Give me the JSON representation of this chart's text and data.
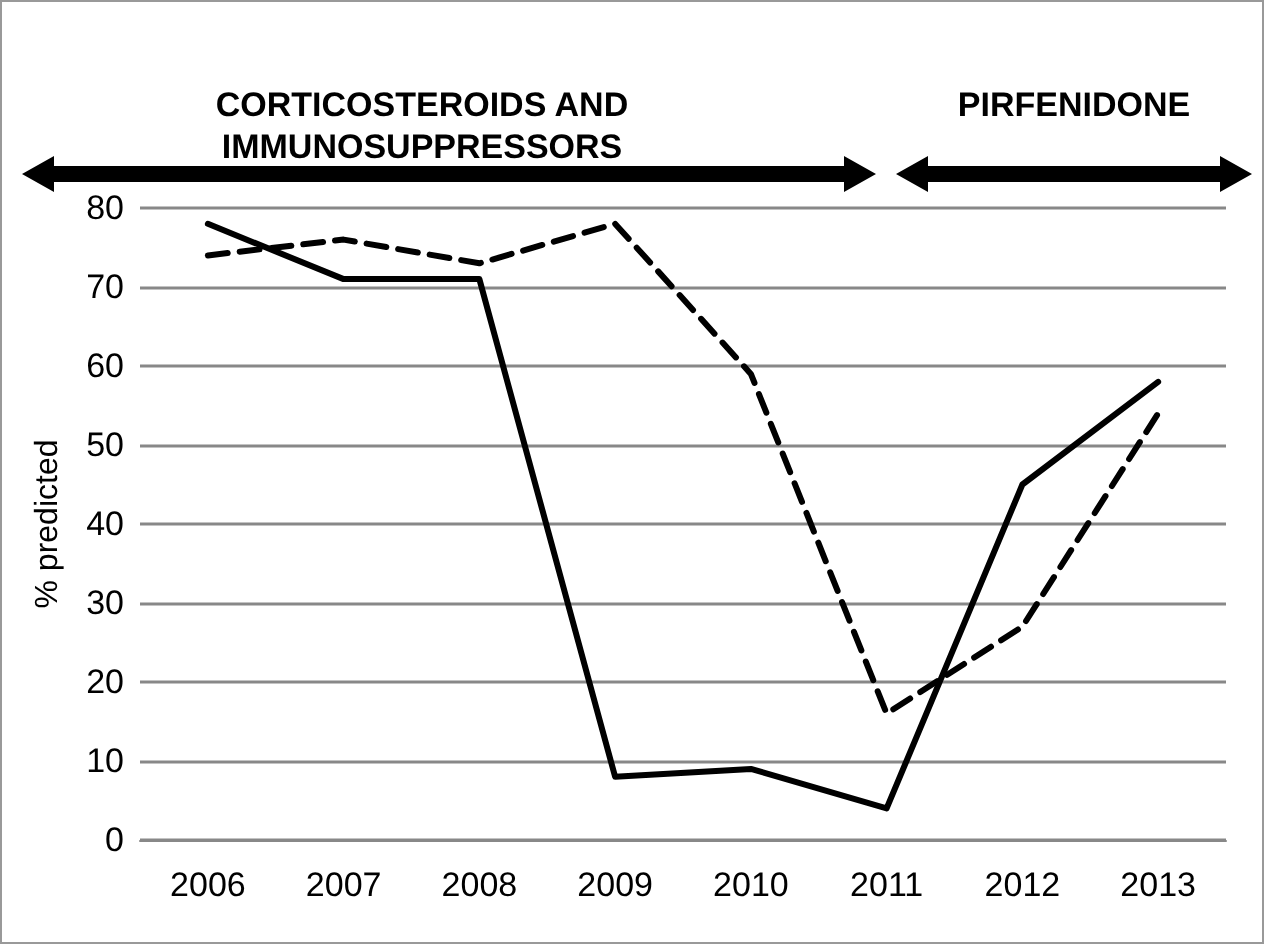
{
  "chart_data": {
    "type": "line",
    "ylabel": "% predicted",
    "annotations": [
      "CORTICOSTEROIDS AND IMMUNOSUPPRESSORS",
      "PIRFENIDONE"
    ],
    "categories": [
      "2006",
      "2007",
      "2008",
      "2009",
      "2010",
      "2011",
      "2012",
      "2013"
    ],
    "series": [
      {
        "color": "#000000",
        "line_style": "solid",
        "values": [
          78,
          71,
          71,
          8,
          9,
          4,
          45,
          58
        ]
      },
      {
        "color": "#000000",
        "line_style": "dashed",
        "values": [
          74,
          76,
          73,
          78,
          59,
          16,
          27,
          54
        ]
      }
    ],
    "ylim": [
      0,
      80
    ],
    "yticks": [
      0,
      10,
      20,
      30,
      40,
      50,
      60,
      70,
      80
    ],
    "grid": "y",
    "marker": "none"
  }
}
